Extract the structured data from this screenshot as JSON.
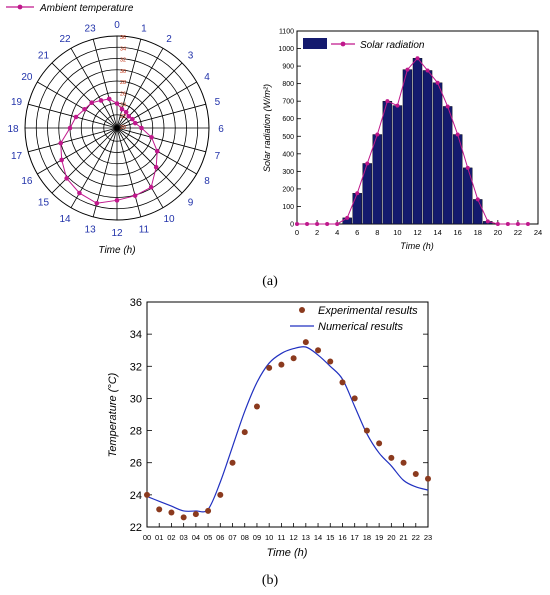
{
  "figure": {
    "caption_a": "(a)",
    "caption_b": "(b)"
  },
  "colors": {
    "magenta": "#c0188c",
    "bar_fill": "#141a6e",
    "polar_blue": "#2233aa",
    "dot_brown": "#8b3a1e",
    "line_blue": "#2030c0"
  },
  "chart_data": [
    {
      "type": "polar-line",
      "legend": "Ambient temperature",
      "xlabel": "Time (h)",
      "hours": [
        "0",
        "1",
        "2",
        "3",
        "4",
        "5",
        "6",
        "7",
        "8",
        "9",
        "10",
        "11",
        "12",
        "13",
        "14",
        "15",
        "16",
        "17",
        "18",
        "19",
        "20",
        "21",
        "22",
        "23"
      ],
      "radial_ticks": [
        "36",
        "34",
        "32",
        "30",
        "28",
        "26",
        "24",
        "22",
        "20"
      ],
      "rlim": [
        20,
        36
      ],
      "values": [
        24.0,
        23.1,
        22.9,
        22.6,
        22.8,
        23.0,
        24.0,
        26.0,
        27.9,
        29.5,
        31.8,
        32.1,
        32.5,
        33.5,
        33.0,
        32.3,
        31.0,
        30.0,
        28.0,
        27.2,
        26.3,
        26.0,
        25.3,
        25.0
      ]
    },
    {
      "type": "bar",
      "legend": "Solar radiation",
      "xlabel": "Time (h)",
      "ylabel": "Solar radiation (W/m²)",
      "x": [
        0,
        1,
        2,
        3,
        4,
        5,
        6,
        7,
        8,
        9,
        10,
        11,
        12,
        13,
        14,
        15,
        16,
        17,
        18,
        19,
        20,
        21,
        22,
        23
      ],
      "values": [
        0,
        0,
        0,
        0,
        0,
        35,
        175,
        345,
        510,
        700,
        675,
        880,
        945,
        875,
        805,
        670,
        510,
        320,
        140,
        15,
        0,
        0,
        0,
        0
      ],
      "xticks": [
        "0",
        "2",
        "4",
        "6",
        "8",
        "10",
        "12",
        "14",
        "16",
        "18",
        "20",
        "22",
        "24"
      ],
      "yticks": [
        "0",
        "100",
        "200",
        "300",
        "400",
        "500",
        "600",
        "700",
        "800",
        "900",
        "1000",
        "1100"
      ],
      "xlim": [
        0,
        24
      ],
      "ylim": [
        0,
        1100
      ]
    },
    {
      "type": "line",
      "xlabel": "Time (h)",
      "ylabel": "Temperature (°C)",
      "categories": [
        "00",
        "01",
        "02",
        "03",
        "04",
        "05",
        "06",
        "07",
        "08",
        "09",
        "10",
        "11",
        "12",
        "13",
        "14",
        "15",
        "16",
        "17",
        "18",
        "19",
        "20",
        "21",
        "22",
        "23"
      ],
      "yticks": [
        "22",
        "24",
        "26",
        "28",
        "30",
        "32",
        "34",
        "36"
      ],
      "ylim": [
        22,
        36
      ],
      "series": [
        {
          "name": "Experimental results",
          "style": "dots",
          "values": [
            24.0,
            23.1,
            22.9,
            22.6,
            22.8,
            23.0,
            24.0,
            26.0,
            27.9,
            29.5,
            31.9,
            32.1,
            32.5,
            33.5,
            33.0,
            32.3,
            31.0,
            30.0,
            28.0,
            27.2,
            26.3,
            26.0,
            25.3,
            25.0
          ]
        },
        {
          "name": "Numerical results",
          "style": "line",
          "values": [
            23.9,
            23.6,
            23.3,
            23.0,
            23.0,
            23.1,
            24.8,
            27.0,
            29.2,
            31.0,
            32.2,
            32.8,
            33.1,
            33.2,
            32.7,
            32.0,
            31.2,
            29.5,
            27.8,
            26.6,
            25.8,
            24.9,
            24.5,
            24.3
          ]
        }
      ]
    }
  ]
}
